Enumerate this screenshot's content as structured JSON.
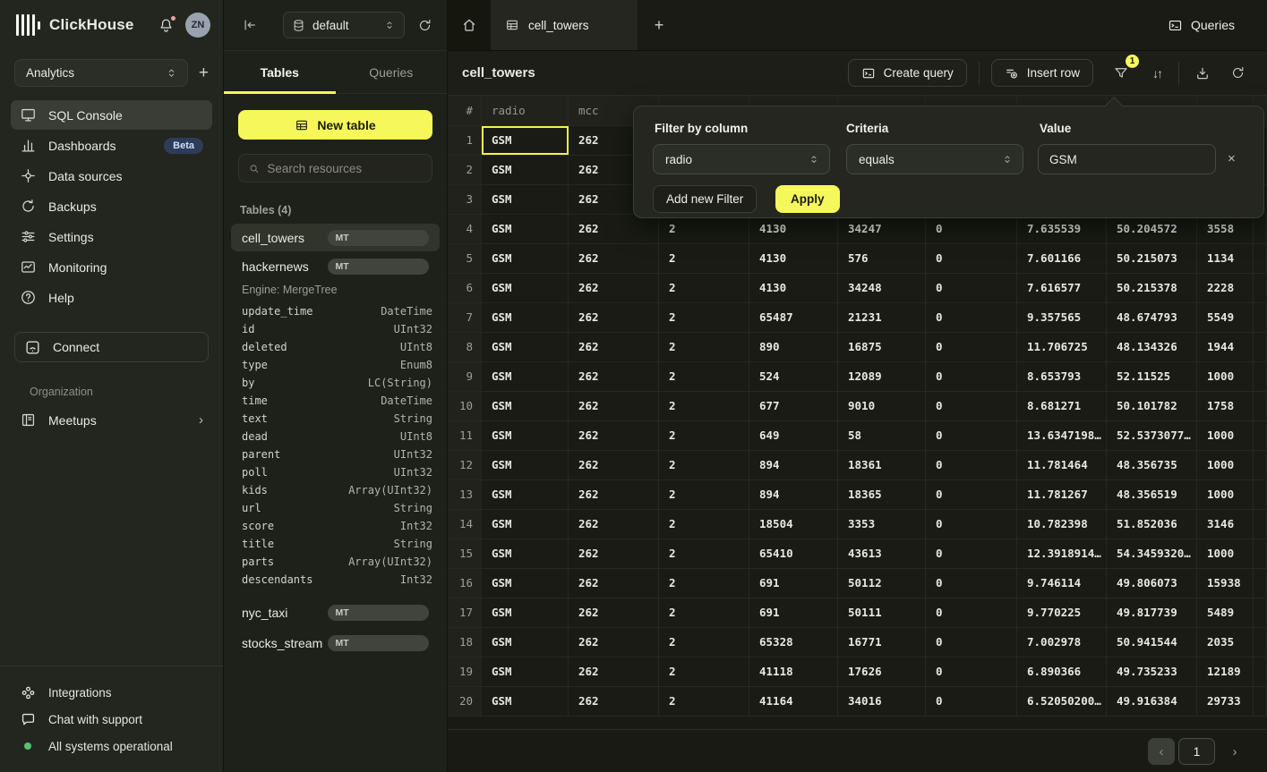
{
  "colors": {
    "accent": "#f5f75a",
    "beta_badge": "#2d3c59",
    "status_green": "#56c271",
    "selection": "#f1f44d"
  },
  "icons": {
    "plus": "+",
    "sort": "↓↑",
    "close": "×",
    "chevron_right": "›",
    "prev": "‹",
    "next": "›"
  },
  "sidebar": {
    "brand": "ClickHouse",
    "avatar": "ZN",
    "workspace": "Analytics",
    "nav": [
      {
        "label": "SQL Console"
      },
      {
        "label": "Dashboards",
        "badge": "Beta"
      },
      {
        "label": "Data sources"
      },
      {
        "label": "Backups"
      },
      {
        "label": "Settings"
      },
      {
        "label": "Monitoring"
      },
      {
        "label": "Help"
      }
    ],
    "connect": "Connect",
    "org_label": "Organization",
    "meetups": "Meetups",
    "integrations": "Integrations",
    "chat": "Chat with support",
    "status": "All systems operational"
  },
  "explorer": {
    "database": "default",
    "tab_tables": "Tables",
    "tab_queries": "Queries",
    "new_table": "New table",
    "search_placeholder": "Search resources",
    "section": "Tables (4)",
    "table1": "cell_towers",
    "table1_badge": "MT",
    "table2": "hackernews",
    "table2_badge": "MT",
    "table2_engine": "Engine: MergeTree",
    "fields": [
      [
        "update_time",
        "DateTime"
      ],
      [
        "id",
        "UInt32"
      ],
      [
        "deleted",
        "UInt8"
      ],
      [
        "type",
        "Enum8"
      ],
      [
        "by",
        "LC(String)"
      ],
      [
        "time",
        "DateTime"
      ],
      [
        "text",
        "String"
      ],
      [
        "dead",
        "UInt8"
      ],
      [
        "parent",
        "UInt32"
      ],
      [
        "poll",
        "UInt32"
      ],
      [
        "kids",
        "Array(UInt32)"
      ],
      [
        "url",
        "String"
      ],
      [
        "score",
        "Int32"
      ],
      [
        "title",
        "String"
      ],
      [
        "parts",
        "Array(UInt32)"
      ],
      [
        "descendants",
        "Int32"
      ]
    ],
    "table3": "nyc_taxi",
    "table3_badge": "MT",
    "table4": "stocks_stream",
    "table4_badge": "MT"
  },
  "main": {
    "active_tab": "cell_towers",
    "queries_button": "Queries",
    "title": "cell_towers",
    "create_query": "Create query",
    "insert_row": "Insert row",
    "filter_count": "1",
    "popup": {
      "column_label": "Filter by column",
      "column_value": "radio",
      "criteria_label": "Criteria",
      "criteria_value": "equals",
      "value_label": "Value",
      "value": "GSM",
      "add_filter": "Add new Filter",
      "apply": "Apply"
    },
    "grid": {
      "headers": [
        "#",
        "radio",
        "mcc"
      ],
      "selected_cell": {
        "row": 0,
        "col": 0
      },
      "rows": [
        {
          "n": "1",
          "cells": [
            "GSM",
            "262",
            "",
            "",
            "",
            "",
            "",
            "",
            ""
          ]
        },
        {
          "n": "2",
          "cells": [
            "GSM",
            "262",
            "",
            "",
            "",
            "",
            "",
            "",
            ""
          ]
        },
        {
          "n": "3",
          "cells": [
            "GSM",
            "262",
            "",
            "",
            "",
            "",
            "",
            "",
            ""
          ]
        },
        {
          "n": "4",
          "cells": [
            "GSM",
            "262",
            "2",
            "4130",
            "34247",
            "0",
            "7.635539",
            "50.204572",
            "3558"
          ]
        },
        {
          "n": "5",
          "cells": [
            "GSM",
            "262",
            "2",
            "4130",
            "576",
            "0",
            "7.601166",
            "50.215073",
            "1134"
          ]
        },
        {
          "n": "6",
          "cells": [
            "GSM",
            "262",
            "2",
            "4130",
            "34248",
            "0",
            "7.616577",
            "50.215378",
            "2228"
          ]
        },
        {
          "n": "7",
          "cells": [
            "GSM",
            "262",
            "2",
            "65487",
            "21231",
            "0",
            "9.357565",
            "48.674793",
            "5549"
          ]
        },
        {
          "n": "8",
          "cells": [
            "GSM",
            "262",
            "2",
            "890",
            "16875",
            "0",
            "11.706725",
            "48.134326",
            "1944"
          ]
        },
        {
          "n": "9",
          "cells": [
            "GSM",
            "262",
            "2",
            "524",
            "12089",
            "0",
            "8.653793",
            "52.11525",
            "1000"
          ]
        },
        {
          "n": "10",
          "cells": [
            "GSM",
            "262",
            "2",
            "677",
            "9010",
            "0",
            "8.681271",
            "50.101782",
            "1758"
          ]
        },
        {
          "n": "11",
          "cells": [
            "GSM",
            "262",
            "2",
            "649",
            "58",
            "0",
            "13.6347198…",
            "52.5373077…",
            "1000"
          ]
        },
        {
          "n": "12",
          "cells": [
            "GSM",
            "262",
            "2",
            "894",
            "18361",
            "0",
            "11.781464",
            "48.356735",
            "1000"
          ]
        },
        {
          "n": "13",
          "cells": [
            "GSM",
            "262",
            "2",
            "894",
            "18365",
            "0",
            "11.781267",
            "48.356519",
            "1000"
          ]
        },
        {
          "n": "14",
          "cells": [
            "GSM",
            "262",
            "2",
            "18504",
            "3353",
            "0",
            "10.782398",
            "51.852036",
            "3146"
          ]
        },
        {
          "n": "15",
          "cells": [
            "GSM",
            "262",
            "2",
            "65410",
            "43613",
            "0",
            "12.3918914…",
            "54.3459320…",
            "1000"
          ]
        },
        {
          "n": "16",
          "cells": [
            "GSM",
            "262",
            "2",
            "691",
            "50112",
            "0",
            "9.746114",
            "49.806073",
            "15938"
          ]
        },
        {
          "n": "17",
          "cells": [
            "GSM",
            "262",
            "2",
            "691",
            "50111",
            "0",
            "9.770225",
            "49.817739",
            "5489"
          ]
        },
        {
          "n": "18",
          "cells": [
            "GSM",
            "262",
            "2",
            "65328",
            "16771",
            "0",
            "7.002978",
            "50.941544",
            "2035"
          ]
        },
        {
          "n": "19",
          "cells": [
            "GSM",
            "262",
            "2",
            "41118",
            "17626",
            "0",
            "6.890366",
            "49.735233",
            "12189"
          ]
        },
        {
          "n": "20",
          "cells": [
            "GSM",
            "262",
            "2",
            "41164",
            "34016",
            "0",
            "6.52050200…",
            "49.916384",
            "29733"
          ]
        }
      ]
    },
    "pagination": {
      "page": "1"
    }
  }
}
